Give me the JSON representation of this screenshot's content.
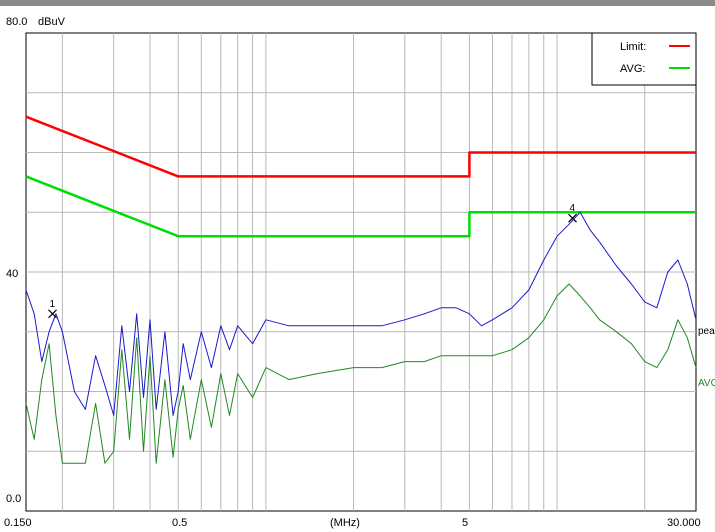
{
  "chart_data": {
    "type": "line",
    "y_unit_label": "dBuV",
    "ylim": [
      0,
      80
    ],
    "y_ticks": [
      "80.0",
      "40",
      "0.0"
    ],
    "y_tick_values": [
      80,
      40,
      0
    ],
    "x_scale": "log",
    "xlim": [
      0.15,
      30
    ],
    "x_ticks": [
      "0.150",
      "0.5",
      "(MHz)",
      "5",
      "30.000"
    ],
    "x_tick_values": [
      0.15,
      0.5,
      1.6,
      5,
      30
    ],
    "grid": true,
    "legend_position": "top-right",
    "legend": [
      {
        "label": "Limit:",
        "color": "#ff0000"
      },
      {
        "label": "AVG:",
        "color": "#00dd00"
      }
    ],
    "series": [
      {
        "name": "Limit:",
        "color": "#ff0000",
        "x": [
          0.15,
          0.5,
          0.5,
          5,
          5,
          30
        ],
        "y": [
          66,
          56,
          56,
          56,
          60,
          60
        ]
      },
      {
        "name": "AVG:",
        "color": "#00dd00",
        "x": [
          0.15,
          0.5,
          0.5,
          5,
          5,
          30
        ],
        "y": [
          56,
          46,
          46,
          46,
          50,
          50
        ]
      },
      {
        "name": "peak",
        "color": "#1a1acc",
        "x": [
          0.15,
          0.16,
          0.17,
          0.18,
          0.19,
          0.2,
          0.22,
          0.24,
          0.26,
          0.28,
          0.3,
          0.32,
          0.34,
          0.36,
          0.38,
          0.4,
          0.42,
          0.45,
          0.48,
          0.5,
          0.52,
          0.55,
          0.6,
          0.65,
          0.7,
          0.75,
          0.8,
          0.9,
          1.0,
          1.2,
          1.5,
          2.0,
          2.5,
          3.0,
          3.5,
          4.0,
          4.5,
          5.0,
          5.5,
          6.0,
          7.0,
          8.0,
          9.0,
          10.0,
          11.0,
          12.0,
          13.0,
          14.0,
          16.0,
          18.0,
          20.0,
          22.0,
          24.0,
          26.0,
          28.0,
          30.0
        ],
        "y": [
          37,
          33,
          25,
          30,
          33,
          30,
          20,
          17,
          26,
          21,
          16,
          31,
          20,
          33,
          19,
          32,
          17,
          30,
          16,
          20,
          28,
          22,
          30,
          24,
          31,
          27,
          31,
          28,
          32,
          31,
          31,
          31,
          31,
          32,
          33,
          34,
          34,
          33,
          31,
          32,
          34,
          37,
          42,
          46,
          48,
          50,
          47,
          45,
          41,
          38,
          35,
          34,
          40,
          42,
          38,
          32
        ]
      },
      {
        "name": "AVG",
        "color": "#228822",
        "x": [
          0.15,
          0.16,
          0.17,
          0.18,
          0.19,
          0.2,
          0.22,
          0.24,
          0.26,
          0.28,
          0.3,
          0.32,
          0.34,
          0.36,
          0.38,
          0.4,
          0.42,
          0.45,
          0.48,
          0.5,
          0.52,
          0.55,
          0.6,
          0.65,
          0.7,
          0.75,
          0.8,
          0.9,
          1.0,
          1.2,
          1.5,
          2.0,
          2.5,
          3.0,
          3.5,
          4.0,
          4.5,
          5.0,
          5.5,
          6.0,
          7.0,
          8.0,
          9.0,
          10.0,
          11.0,
          12.0,
          13.0,
          14.0,
          16.0,
          18.0,
          20.0,
          22.0,
          24.0,
          26.0,
          28.0,
          30.0
        ],
        "y": [
          18,
          12,
          22,
          28,
          16,
          8,
          8,
          8,
          18,
          8,
          10,
          27,
          12,
          29,
          10,
          26,
          8,
          22,
          9,
          17,
          21,
          12,
          22,
          14,
          23,
          16,
          23,
          19,
          24,
          22,
          23,
          24,
          24,
          25,
          25,
          26,
          26,
          26,
          26,
          26,
          27,
          29,
          32,
          36,
          38,
          36,
          34,
          32,
          30,
          28,
          25,
          24,
          27,
          32,
          29,
          24
        ]
      }
    ],
    "series_end_labels": [
      "peak",
      "AVG"
    ],
    "markers": [
      {
        "label": "1",
        "x": 0.185,
        "y": 33
      },
      {
        "label": "4",
        "x": 11.3,
        "y": 49
      }
    ]
  }
}
